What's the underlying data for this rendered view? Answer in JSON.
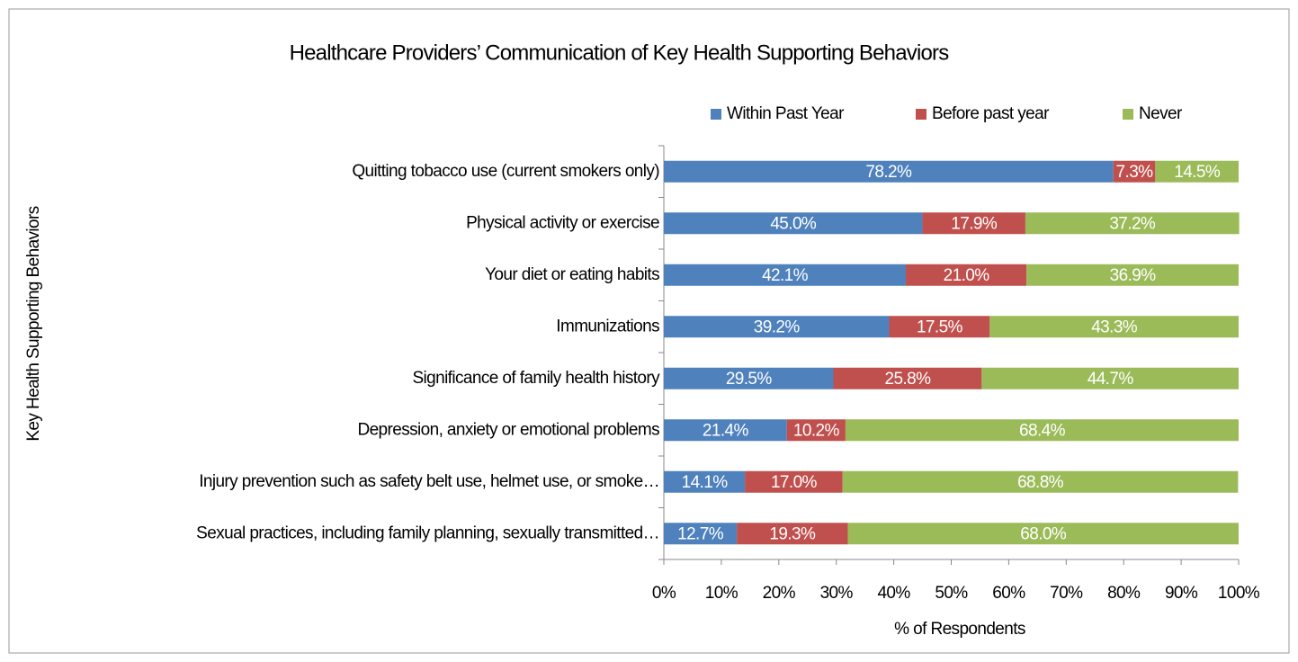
{
  "chart_data": {
    "type": "stacked_barh",
    "title": "Healthcare Providers’ Communication of Key Health Supporting Behaviors",
    "x_label": "% of Respondents",
    "y_label": "Key Health Supporting Behaviors",
    "categories": [
      "Quitting tobacco use (current smokers only)",
      "Physical activity or exercise",
      "Your diet or eating habits",
      "Immunizations",
      "Significance of family health history",
      "Depression, anxiety or emotional problems",
      "Injury prevention such as safety belt use, helmet use, or smoke…",
      "Sexual practices, including family planning, sexually transmitted…"
    ],
    "series": [
      {
        "name": "Within Past Year",
        "color": "#4f81bd",
        "values": [
          78.2,
          45.0,
          42.1,
          39.2,
          29.5,
          21.4,
          14.1,
          12.7
        ],
        "value_labels": [
          "78.2%",
          "45.0%",
          "42.1%",
          "39.2%",
          "29.5%",
          "21.4%",
          "14.1%",
          "12.7%"
        ]
      },
      {
        "name": "Before past year",
        "color": "#c0504d",
        "values": [
          7.3,
          17.9,
          21.0,
          17.5,
          25.8,
          10.2,
          17.0,
          19.3
        ],
        "value_labels": [
          "7.3%",
          "17.9%",
          "21.0%",
          "17.5%",
          "25.8%",
          "10.2%",
          "17.0%",
          "19.3%"
        ]
      },
      {
        "name": "Never",
        "color": "#9bbb59",
        "values": [
          14.5,
          37.2,
          36.9,
          43.3,
          44.7,
          68.4,
          68.8,
          68.0
        ],
        "value_labels": [
          "14.5%",
          "37.2%",
          "36.9%",
          "43.3%",
          "44.7%",
          "68.4%",
          "68.8%",
          "68.0%"
        ]
      }
    ],
    "xlim": [
      0,
      100
    ],
    "xticks": [
      {
        "value": 0,
        "label": "0%"
      },
      {
        "value": 10,
        "label": "10%"
      },
      {
        "value": 20,
        "label": "20%"
      },
      {
        "value": 30,
        "label": "30%"
      },
      {
        "value": 40,
        "label": "40%"
      },
      {
        "value": 50,
        "label": "50%"
      },
      {
        "value": 60,
        "label": "60%"
      },
      {
        "value": 70,
        "label": "70%"
      },
      {
        "value": 80,
        "label": "80%"
      },
      {
        "value": 90,
        "label": "90%"
      },
      {
        "value": 100,
        "label": "100%"
      }
    ],
    "legend": "top",
    "grid": false
  }
}
